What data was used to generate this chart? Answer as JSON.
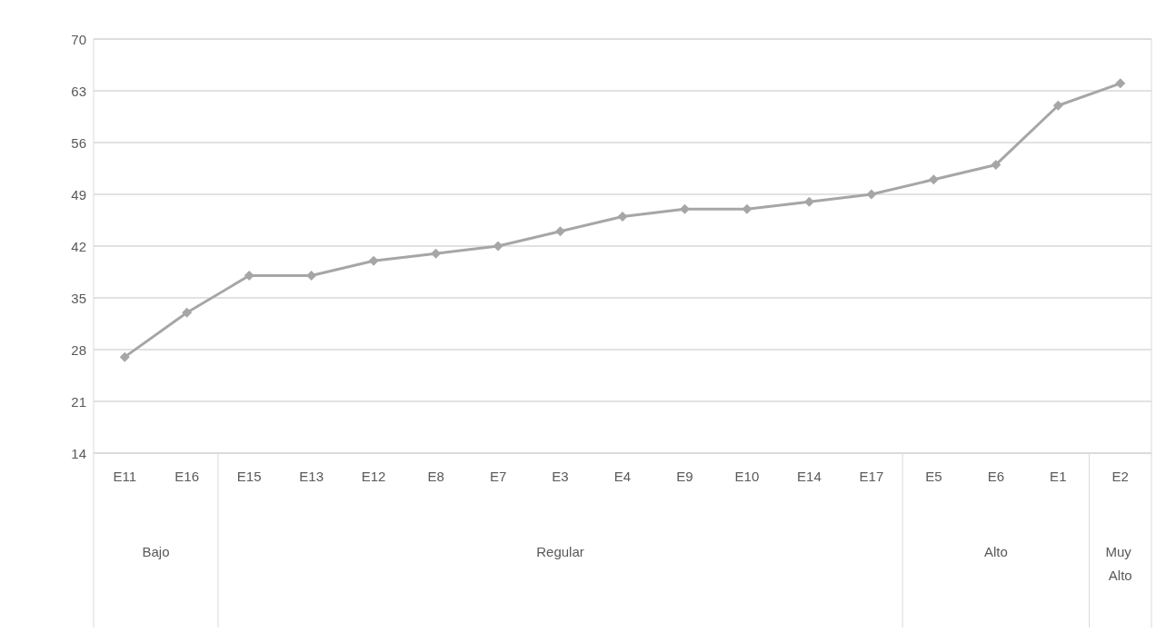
{
  "chart_data": {
    "type": "line",
    "categories": [
      "E11",
      "E16",
      "E15",
      "E13",
      "E12",
      "E8",
      "E7",
      "E3",
      "E4",
      "E9",
      "E10",
      "E14",
      "E17",
      "E5",
      "E6",
      "E1",
      "E2"
    ],
    "series": [
      {
        "color": "#a6a6a6",
        "values": [
          27,
          33,
          38,
          38,
          40,
          41,
          42,
          44,
          46,
          47,
          47,
          48,
          49,
          51,
          53,
          61,
          64
        ]
      }
    ],
    "ylim": [
      14,
      70
    ],
    "yticks": [
      14,
      21,
      28,
      35,
      42,
      49,
      56,
      63,
      70
    ],
    "grid": "y",
    "marker": "diamond",
    "line_style": "solid",
    "annotations": [
      "Bajo",
      "Regular",
      "Alto",
      "Muy Alto"
    ]
  }
}
